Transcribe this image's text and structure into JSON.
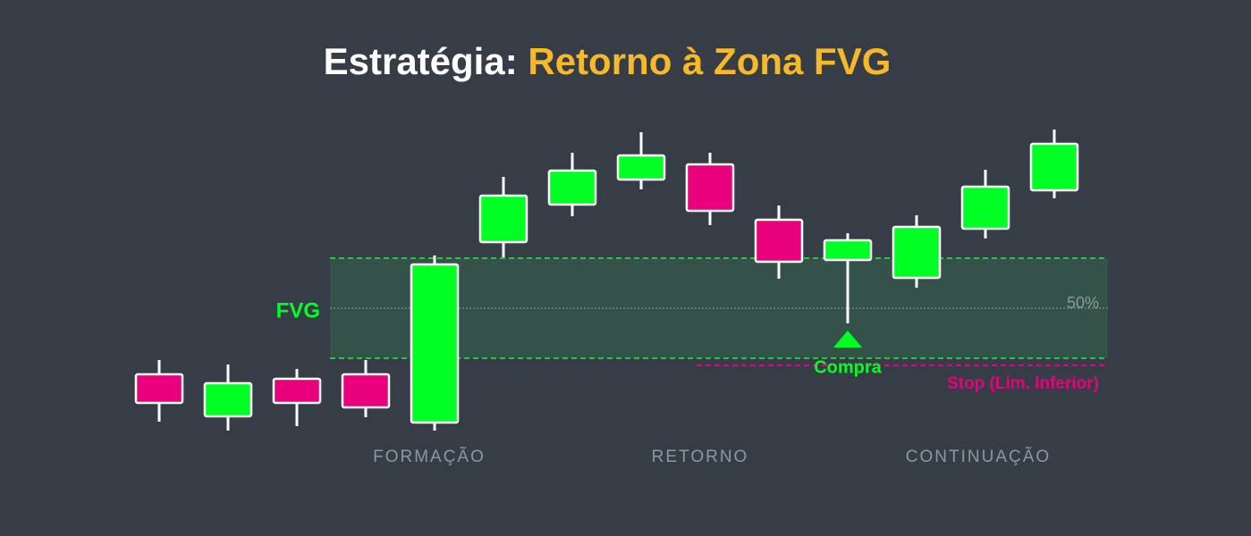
{
  "title": {
    "prefix": "Estratégia:",
    "highlight": "Retorno à Zona FVG"
  },
  "labels": {
    "fvg": "FVG",
    "midline": "50%",
    "buy": "Compra",
    "stop": "Stop (Lim. Inferior)"
  },
  "phases": [
    "FORMAÇÃO",
    "RETORNO",
    "CONTINUAÇÃO"
  ]
}
